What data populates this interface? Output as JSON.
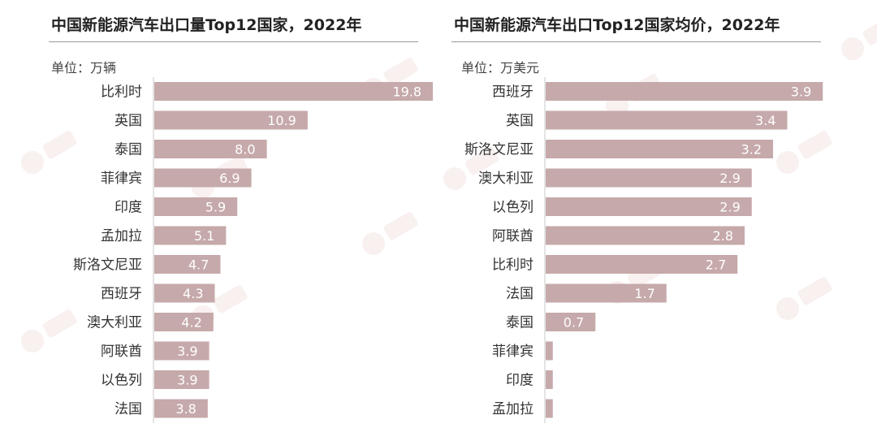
{
  "colors": {
    "bar": "#c6a9aa",
    "value_text": "#ffffff",
    "rule": "#9a9a9a"
  },
  "chart_data": [
    {
      "type": "bar",
      "orientation": "horizontal",
      "title": "中国新能源汽车出口量Top12国家，2022年",
      "unit_label": "单位：万辆",
      "categories": [
        "比利时",
        "英国",
        "泰国",
        "菲律宾",
        "印度",
        "孟加拉",
        "斯洛文尼亚",
        "西班牙",
        "澳大利亚",
        "阿联酋",
        "以色列",
        "法国"
      ],
      "values": [
        19.8,
        10.9,
        8.0,
        6.9,
        5.9,
        5.1,
        4.7,
        4.3,
        4.2,
        3.9,
        3.9,
        3.8
      ],
      "value_labels": [
        "19.8",
        "10.9",
        "8.0",
        "6.9",
        "5.9",
        "5.1",
        "4.7",
        "4.3",
        "4.2",
        "3.9",
        "3.9",
        "3.8"
      ],
      "xlim": [
        0,
        20.2
      ],
      "grid": false,
      "legend": "none"
    },
    {
      "type": "bar",
      "orientation": "horizontal",
      "title": "中国新能源汽车出口Top12国家均价，2022年",
      "unit_label": "单位：万美元",
      "categories": [
        "西班牙",
        "英国",
        "斯洛文尼亚",
        "澳大利亚",
        "以色列",
        "阿联酋",
        "比利时",
        "法国",
        "泰国",
        "菲律宾",
        "印度",
        "孟加拉"
      ],
      "values": [
        3.9,
        3.4,
        3.2,
        2.9,
        2.9,
        2.8,
        2.7,
        1.7,
        0.7,
        0.1,
        0.1,
        0.1
      ],
      "value_labels": [
        "3.9",
        "3.4",
        "3.2",
        "2.9",
        "2.9",
        "2.8",
        "2.7",
        "1.7",
        "0.7",
        "",
        "",
        ""
      ],
      "xlim": [
        0,
        4.0
      ],
      "grid": false,
      "legend": "none"
    }
  ]
}
